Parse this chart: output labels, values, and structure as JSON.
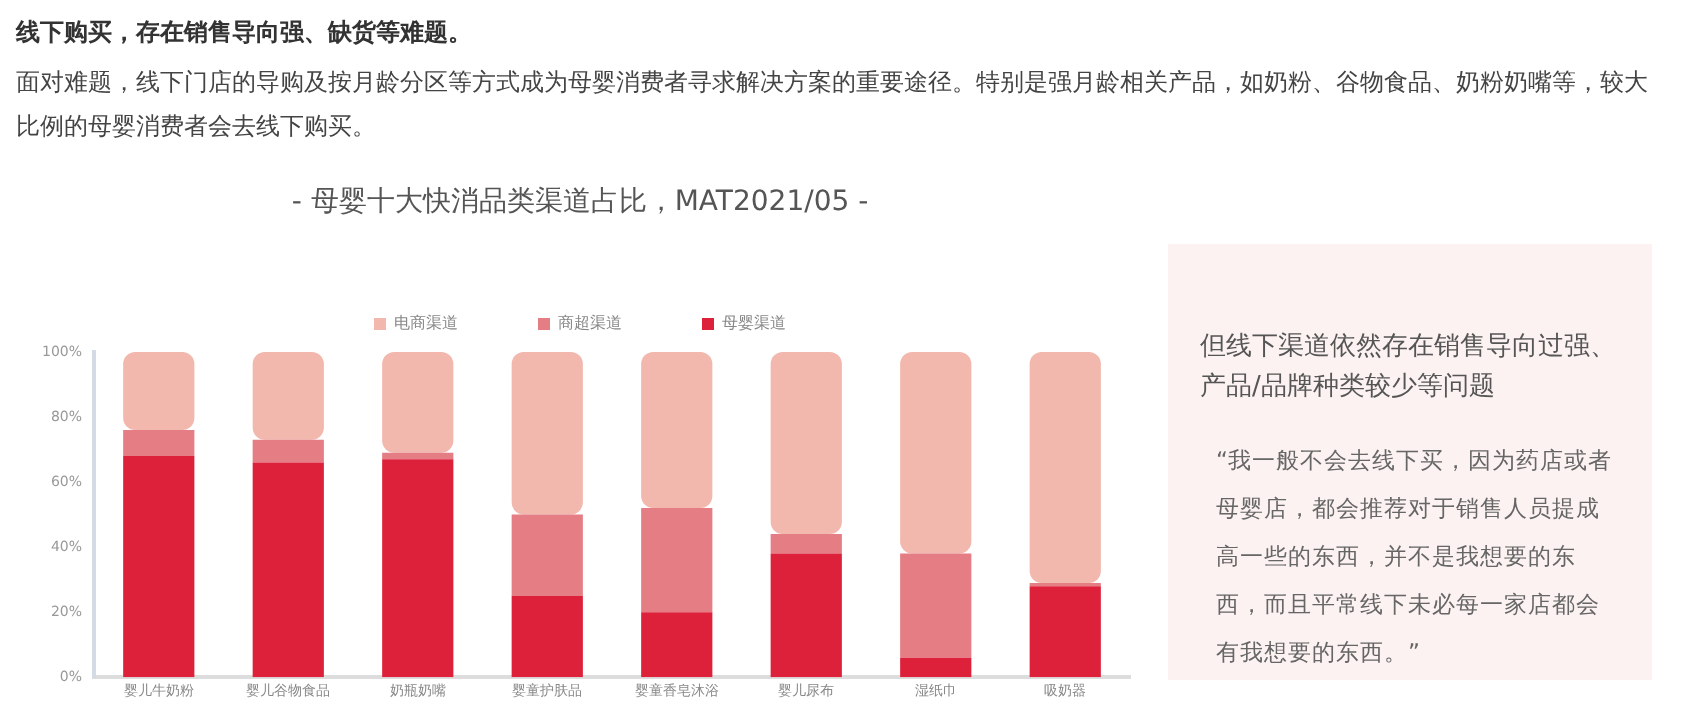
{
  "chart_data": {
    "type": "bar",
    "stacked": true,
    "title": "- 母婴十大快消品类渠道占比，MAT2021/05 -",
    "categories": [
      "婴儿牛奶粉",
      "婴儿谷物食品",
      "奶瓶奶嘴",
      "婴童护肤品",
      "婴童香皂沐浴",
      "婴儿尿布",
      "湿纸巾",
      "吸奶器"
    ],
    "series": [
      {
        "name": "母婴渠道",
        "color": "#de213b",
        "values": [
          68,
          66,
          67,
          25,
          20,
          38,
          6,
          28
        ]
      },
      {
        "name": "商超渠道",
        "color": "#e47d84",
        "values": [
          8,
          7,
          2,
          25,
          32,
          6,
          32,
          1
        ]
      },
      {
        "name": "电商渠道",
        "color": "#f2b8ae",
        "values": [
          24,
          27,
          31,
          50,
          48,
          56,
          62,
          71
        ]
      }
    ],
    "ylim": [
      0,
      100
    ],
    "yticks": [
      {
        "value": 0,
        "label": "0%"
      },
      {
        "value": 20,
        "label": "20%"
      },
      {
        "value": 40,
        "label": "40%"
      },
      {
        "value": 60,
        "label": "60%"
      },
      {
        "value": 80,
        "label": "80%"
      },
      {
        "value": 100,
        "label": "100%"
      }
    ],
    "grid": false,
    "legend": "top",
    "annotations": [
      "线下购买，存在销售导向强、缺货等难题。",
      "面对难题，线下门店的导购及按月龄分区等方式成为母婴消费者寻求解决方案的重要途径。特别是强月龄相关产品，如奶粉、谷物食品、奶粉奶嘴等，较大比例的母婴消费者会去线下购买。",
      "但线下渠道依然存在销售导向过强、产品/品牌种类较少等问题",
      "“我一般不会去线下买，因为药店或者母婴店，都会推荐对于销售人员提成高一些的东西，并不是我想要的东西，而且平常线下未必每一家店都会有我想要的东西。”"
    ]
  }
}
